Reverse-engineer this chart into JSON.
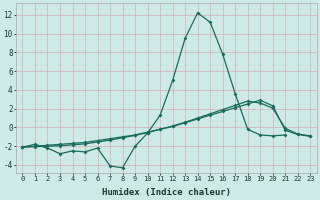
{
  "xlabel": "Humidex (Indice chaleur)",
  "background_color": "#ceeae6",
  "grid_color": "#d4b8bc",
  "line_color": "#1a6b5a",
  "xlim": [
    -0.5,
    23.5
  ],
  "ylim": [
    -4.8,
    13.2
  ],
  "xticks": [
    0,
    1,
    2,
    3,
    4,
    5,
    6,
    7,
    8,
    9,
    10,
    11,
    12,
    13,
    14,
    15,
    16,
    17,
    18,
    19,
    20,
    21,
    22,
    23
  ],
  "yticks": [
    -4,
    -2,
    0,
    2,
    4,
    6,
    8,
    10,
    12
  ],
  "line1_x": [
    0,
    1,
    2,
    3,
    4,
    5,
    6,
    7,
    8,
    9,
    10,
    11,
    12,
    13,
    14,
    15,
    16,
    17,
    18,
    19,
    20,
    21
  ],
  "line1_y": [
    -2.1,
    -1.8,
    -2.2,
    -2.8,
    -2.5,
    -2.6,
    -2.2,
    -4.1,
    -4.3,
    -2.0,
    -0.6,
    1.3,
    5.0,
    9.5,
    12.2,
    11.2,
    7.8,
    3.6,
    -0.2,
    -0.8,
    -0.9,
    -0.8
  ],
  "line2_x": [
    0,
    1,
    2,
    3,
    4,
    5,
    6,
    7,
    8,
    9,
    10,
    11,
    12,
    13,
    14,
    15,
    16,
    17,
    18,
    19,
    20,
    21,
    22,
    23
  ],
  "line2_y": [
    -2.1,
    -2.05,
    -2.0,
    -1.95,
    -1.85,
    -1.75,
    -1.55,
    -1.35,
    -1.1,
    -0.85,
    -0.55,
    -0.2,
    0.15,
    0.55,
    1.0,
    1.45,
    1.9,
    2.35,
    2.8,
    2.6,
    2.05,
    -0.1,
    -0.7,
    -0.9
  ],
  "line3_x": [
    0,
    1,
    2,
    3,
    4,
    5,
    6,
    7,
    8,
    9,
    10,
    11,
    12,
    13,
    14,
    15,
    16,
    17,
    18,
    19,
    20,
    21,
    22,
    23
  ],
  "line3_y": [
    -2.1,
    -2.0,
    -1.9,
    -1.8,
    -1.7,
    -1.6,
    -1.4,
    -1.2,
    -1.0,
    -0.8,
    -0.5,
    -0.2,
    0.1,
    0.5,
    0.9,
    1.3,
    1.7,
    2.1,
    2.5,
    2.9,
    2.3,
    -0.3,
    -0.75,
    -0.95
  ]
}
